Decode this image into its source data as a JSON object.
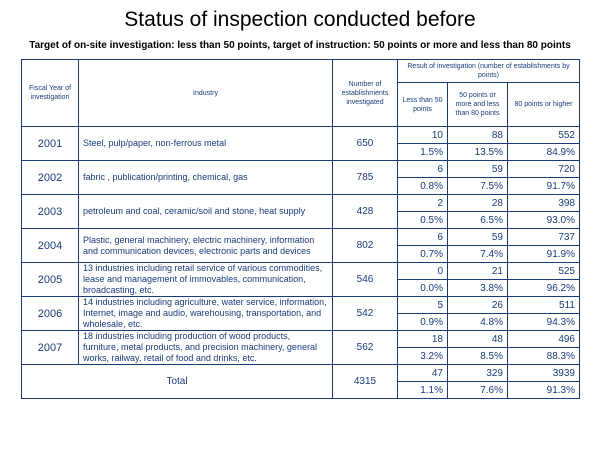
{
  "title": "Status of inspection conducted before",
  "subtitle": "Target of on-site investigation: less than 50 points, target of instruction: 50 points or more and less than 80 points",
  "headers": {
    "fiscal_year": "Fiscal Year of investigation",
    "industry": "Industry",
    "number": "Number of establishments investigated",
    "result": "Result of investigation (number of establishments by points)",
    "lt50": "Less than 50 points",
    "mid": "50 points or more and less than 80 points",
    "ge80": "80 points or higher"
  },
  "rows": [
    {
      "year": "2001",
      "industry": "Steel, pulp/paper, non-ferrous metal",
      "count": "650",
      "c1": "10",
      "c2": "88",
      "c3": "552",
      "p1": "1.5%",
      "p2": "13.5%",
      "p3": "84.9%"
    },
    {
      "year": "2002",
      "industry": "fabric , publication/printing, chemical, gas",
      "count": "785",
      "c1": "6",
      "c2": "59",
      "c3": "720",
      "p1": "0.8%",
      "p2": "7.5%",
      "p3": "91.7%"
    },
    {
      "year": "2003",
      "industry": "petroleum and coal, ceramic/soil and stone, heat supply",
      "count": "428",
      "c1": "2",
      "c2": "28",
      "c3": "398",
      "p1": "0.5%",
      "p2": "6.5%",
      "p3": "93.0%"
    },
    {
      "year": "2004",
      "industry": "Plastic, general machinery, electric machinery, information and communication devices, electronic parts and devices",
      "count": "802",
      "c1": "6",
      "c2": "59",
      "c3": "737",
      "p1": "0.7%",
      "p2": "7.4%",
      "p3": "91.9%"
    },
    {
      "year": "2005",
      "industry": "13 industries including retail service of various commodities, lease and management of immovables, communication, broadcasting, etc.",
      "count": "546",
      "c1": "0",
      "c2": "21",
      "c3": "525",
      "p1": "0.0%",
      "p2": "3.8%",
      "p3": "96.2%"
    },
    {
      "year": "2006",
      "industry": "14 industries including agriculture, water service, information, Internet, image and audio, warehousing, transportation, and wholesale, etc.",
      "count": "542",
      "c1": "5",
      "c2": "26",
      "c3": "511",
      "p1": "0.9%",
      "p2": "4.8%",
      "p3": "94.3%"
    },
    {
      "year": "2007",
      "industry": "18 industries including production of wood products, furniture, metal products, and precision machinery, general works, railway, retail of food and drinks, etc.",
      "count": "562",
      "c1": "18",
      "c2": "48",
      "c3": "496",
      "p1": "3.2%",
      "p2": "8.5%",
      "p3": "88.3%"
    }
  ],
  "total": {
    "label": "Total",
    "count": "4315",
    "c1": "47",
    "c2": "329",
    "c3": "3939",
    "p1": "1.1%",
    "p2": "7.6%",
    "p3": "91.3%"
  }
}
